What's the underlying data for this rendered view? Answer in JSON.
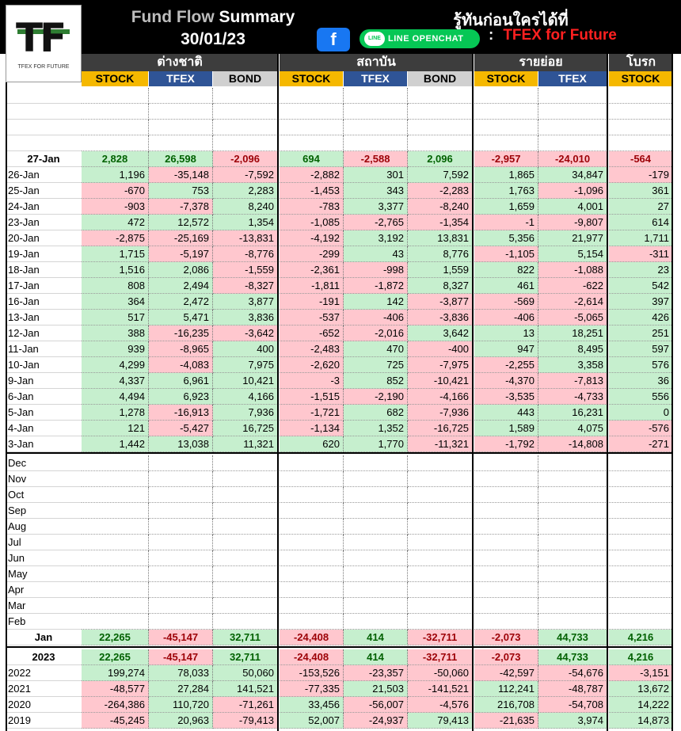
{
  "header": {
    "title_grey": "Fund Flow",
    "title_white": "Summary",
    "date": "30/01/23",
    "thai_tagline": "รู้ทันก่อนใครได้ที่",
    "line_label": "LINE OPENCHAT",
    "line_icon_text": "LINE",
    "facebook_glyph": "f",
    "separator": ":",
    "channel_name": "TFEX for Future",
    "logo_text": "TF",
    "logo_sub": "TFEX FOR FUTURE"
  },
  "groups": [
    "ต่างชาติ",
    "สถาบัน",
    "รายย่อย",
    "โบรก"
  ],
  "columns": [
    "STOCK",
    "TFEX",
    "BOND",
    "STOCK",
    "TFEX",
    "BOND",
    "STOCK",
    "TFEX",
    "STOCK"
  ],
  "current_row": {
    "label": "27-Jan",
    "values": [
      "2,828",
      "26,598",
      "-2,096",
      "694",
      "-2,588",
      "2,096",
      "-2,957",
      "-24,010",
      "-564"
    ]
  },
  "daily_rows": [
    {
      "label": "26-Jan",
      "values": [
        "1,196",
        "-35,148",
        "-7,592",
        "-2,882",
        "301",
        "7,592",
        "1,865",
        "34,847",
        "-179"
      ]
    },
    {
      "label": "25-Jan",
      "values": [
        "-670",
        "753",
        "2,283",
        "-1,453",
        "343",
        "-2,283",
        "1,763",
        "-1,096",
        "361"
      ]
    },
    {
      "label": "24-Jan",
      "values": [
        "-903",
        "-7,378",
        "8,240",
        "-783",
        "3,377",
        "-8,240",
        "1,659",
        "4,001",
        "27"
      ]
    },
    {
      "label": "23-Jan",
      "values": [
        "472",
        "12,572",
        "1,354",
        "-1,085",
        "-2,765",
        "-1,354",
        "-1",
        "-9,807",
        "614"
      ]
    },
    {
      "label": "20-Jan",
      "values": [
        "-2,875",
        "-25,169",
        "-13,831",
        "-4,192",
        "3,192",
        "13,831",
        "5,356",
        "21,977",
        "1,711"
      ]
    },
    {
      "label": "19-Jan",
      "values": [
        "1,715",
        "-5,197",
        "-8,776",
        "-299",
        "43",
        "8,776",
        "-1,105",
        "5,154",
        "-311"
      ]
    },
    {
      "label": "18-Jan",
      "values": [
        "1,516",
        "2,086",
        "-1,559",
        "-2,361",
        "-998",
        "1,559",
        "822",
        "-1,088",
        "23"
      ]
    },
    {
      "label": "17-Jan",
      "values": [
        "808",
        "2,494",
        "-8,327",
        "-1,811",
        "-1,872",
        "8,327",
        "461",
        "-622",
        "542"
      ]
    },
    {
      "label": "16-Jan",
      "values": [
        "364",
        "2,472",
        "3,877",
        "-191",
        "142",
        "-3,877",
        "-569",
        "-2,614",
        "397"
      ]
    },
    {
      "label": "13-Jan",
      "values": [
        "517",
        "5,471",
        "3,836",
        "-537",
        "-406",
        "-3,836",
        "-406",
        "-5,065",
        "426"
      ]
    },
    {
      "label": "12-Jan",
      "values": [
        "388",
        "-16,235",
        "-3,642",
        "-652",
        "-2,016",
        "3,642",
        "13",
        "18,251",
        "251"
      ]
    },
    {
      "label": "11-Jan",
      "values": [
        "939",
        "-8,965",
        "400",
        "-2,483",
        "470",
        "-400",
        "947",
        "8,495",
        "597"
      ]
    },
    {
      "label": "10-Jan",
      "values": [
        "4,299",
        "-4,083",
        "7,975",
        "-2,620",
        "725",
        "-7,975",
        "-2,255",
        "3,358",
        "576"
      ]
    },
    {
      "label": "9-Jan",
      "values": [
        "4,337",
        "6,961",
        "10,421",
        "-3",
        "852",
        "-10,421",
        "-4,370",
        "-7,813",
        "36"
      ]
    },
    {
      "label": "6-Jan",
      "values": [
        "4,494",
        "6,923",
        "4,166",
        "-1,515",
        "-2,190",
        "-4,166",
        "-3,535",
        "-4,733",
        "556"
      ]
    },
    {
      "label": "5-Jan",
      "values": [
        "1,278",
        "-16,913",
        "7,936",
        "-1,721",
        "682",
        "-7,936",
        "443",
        "16,231",
        "0"
      ]
    },
    {
      "label": "4-Jan",
      "values": [
        "121",
        "-5,427",
        "16,725",
        "-1,134",
        "1,352",
        "-16,725",
        "1,589",
        "4,075",
        "-576"
      ]
    },
    {
      "label": "3-Jan",
      "values": [
        "1,442",
        "13,038",
        "11,321",
        "620",
        "1,770",
        "-11,321",
        "-1,792",
        "-14,808",
        "-271"
      ]
    }
  ],
  "months": [
    "Dec",
    "Nov",
    "Oct",
    "Sep",
    "Aug",
    "Jul",
    "Jun",
    "May",
    "Apr",
    "Mar",
    "Feb"
  ],
  "jan_row": {
    "label": "Jan",
    "values": [
      "22,265",
      "-45,147",
      "32,711",
      "-24,408",
      "414",
      "-32,711",
      "-2,073",
      "44,733",
      "4,216"
    ]
  },
  "year_current": {
    "label": "2023",
    "values": [
      "22,265",
      "-45,147",
      "32,711",
      "-24,408",
      "414",
      "-32,711",
      "-2,073",
      "44,733",
      "4,216"
    ]
  },
  "years": [
    {
      "label": "2022",
      "values": [
        "199,274",
        "78,033",
        "50,060",
        "-153,526",
        "-23,357",
        "-50,060",
        "-42,597",
        "-54,676",
        "-3,151"
      ]
    },
    {
      "label": "2021",
      "values": [
        "-48,577",
        "27,284",
        "141,521",
        "-77,335",
        "21,503",
        "-141,521",
        "112,241",
        "-48,787",
        "13,672"
      ]
    },
    {
      "label": "2020",
      "values": [
        "-264,386",
        "110,720",
        "-71,261",
        "33,456",
        "-56,007",
        "-4,576",
        "216,708",
        "-54,708",
        "14,222"
      ]
    },
    {
      "label": "2019",
      "values": [
        "-45,245",
        "20,963",
        "-79,413",
        "52,007",
        "-24,937",
        "79,413",
        "-21,635",
        "3,974",
        "14,873"
      ]
    }
  ],
  "colors": {
    "positive_fill": "#c6efce",
    "negative_fill": "#ffc7ce",
    "positive_text": "#006100",
    "negative_text": "#9c0006",
    "stock_header": "#f5b800",
    "tfex_header": "#2f5496",
    "bond_header": "#d0d0d0"
  }
}
